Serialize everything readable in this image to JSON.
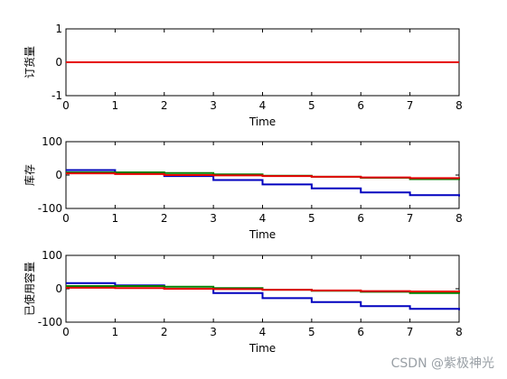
{
  "watermark": "CSDN @紫极神光",
  "chart_data": [
    {
      "type": "line",
      "xlabel": "Time",
      "ylabel": "订货量",
      "xlim": [
        0,
        8
      ],
      "ylim": [
        -1,
        1
      ],
      "xticks": [
        "0",
        "1",
        "2",
        "3",
        "4",
        "5",
        "6",
        "7",
        "8"
      ],
      "yticks": [
        "-1",
        "0",
        "1"
      ],
      "step": true,
      "series": [
        {
          "color": "#0000bf",
          "values": [
            0,
            0,
            0,
            0,
            0,
            0,
            0,
            0,
            0
          ]
        },
        {
          "color": "#007f00",
          "values": [
            0,
            0,
            0,
            0,
            0,
            0,
            0,
            0,
            0
          ]
        },
        {
          "color": "#e60000",
          "values": [
            0,
            0,
            0,
            0,
            0,
            0,
            0,
            0,
            0
          ]
        }
      ]
    },
    {
      "type": "line",
      "xlabel": "Time",
      "ylabel": "库存",
      "xlim": [
        0,
        8
      ],
      "ylim": [
        -100,
        100
      ],
      "xticks": [
        "0",
        "1",
        "2",
        "3",
        "4",
        "5",
        "6",
        "7",
        "8"
      ],
      "yticks": [
        "-100",
        "0",
        "100"
      ],
      "step": true,
      "series": [
        {
          "color": "#0000bf",
          "values": [
            15,
            5,
            -3,
            -15,
            -28,
            -40,
            -52,
            -60,
            -64
          ]
        },
        {
          "color": "#007f00",
          "values": [
            8,
            8,
            6,
            2,
            -2,
            -5,
            -8,
            -12,
            -15
          ]
        },
        {
          "color": "#e60000",
          "values": [
            5,
            3,
            0,
            -1,
            -3,
            -5,
            -7,
            -9,
            -10
          ]
        }
      ]
    },
    {
      "type": "line",
      "xlabel": "Time",
      "ylabel": "已使用容量",
      "xlim": [
        0,
        8
      ],
      "ylim": [
        -100,
        100
      ],
      "xticks": [
        "0",
        "1",
        "2",
        "3",
        "4",
        "5",
        "6",
        "7",
        "8"
      ],
      "yticks": [
        "-100",
        "0",
        "100"
      ],
      "step": true,
      "series": [
        {
          "color": "#0000bf",
          "values": [
            17,
            10,
            0,
            -13,
            -28,
            -40,
            -52,
            -60,
            -64
          ]
        },
        {
          "color": "#007f00",
          "values": [
            8,
            8,
            6,
            2,
            -3,
            -6,
            -9,
            -13,
            -15
          ]
        },
        {
          "color": "#e60000",
          "values": [
            3,
            2,
            0,
            -1,
            -3,
            -5,
            -7,
            -8,
            -10
          ]
        }
      ]
    }
  ]
}
